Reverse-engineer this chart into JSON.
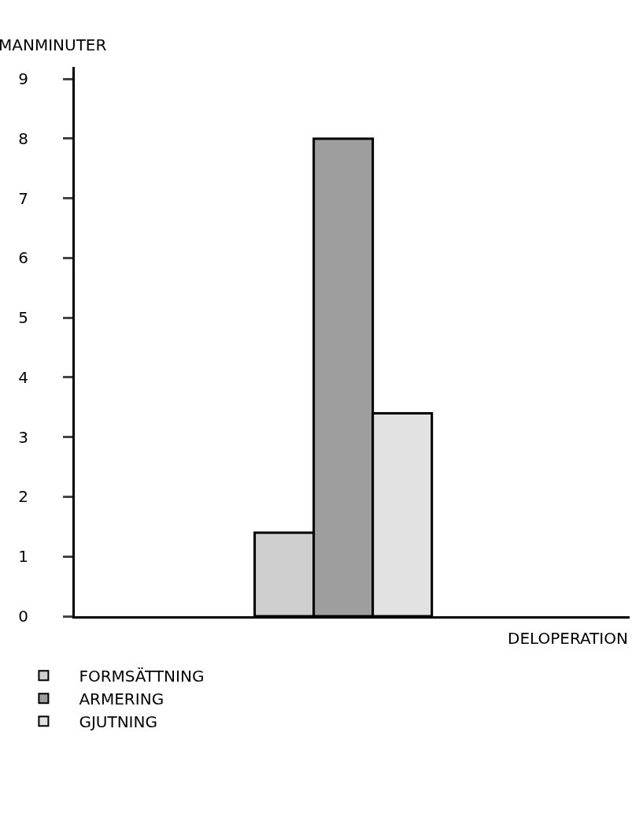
{
  "chart_data": {
    "type": "bar",
    "xlabel": "DELOPERATION",
    "ylabel": "MANMINUTER",
    "categories": [
      null
    ],
    "series": [
      {
        "name": "FORMSÄTTNING",
        "color": "#cfcfcf",
        "values": [
          1.4
        ]
      },
      {
        "name": "ARMERING",
        "color": "#9e9e9e",
        "values": [
          8.0
        ]
      },
      {
        "name": "GJUTNING",
        "color": "#e2e2e2",
        "values": [
          3.4
        ]
      }
    ],
    "ylim": [
      0,
      9.2
    ],
    "yticks": [
      0,
      1,
      2,
      3,
      4,
      5,
      6,
      7,
      8,
      9
    ],
    "grid": false,
    "legend": "bottom left"
  }
}
